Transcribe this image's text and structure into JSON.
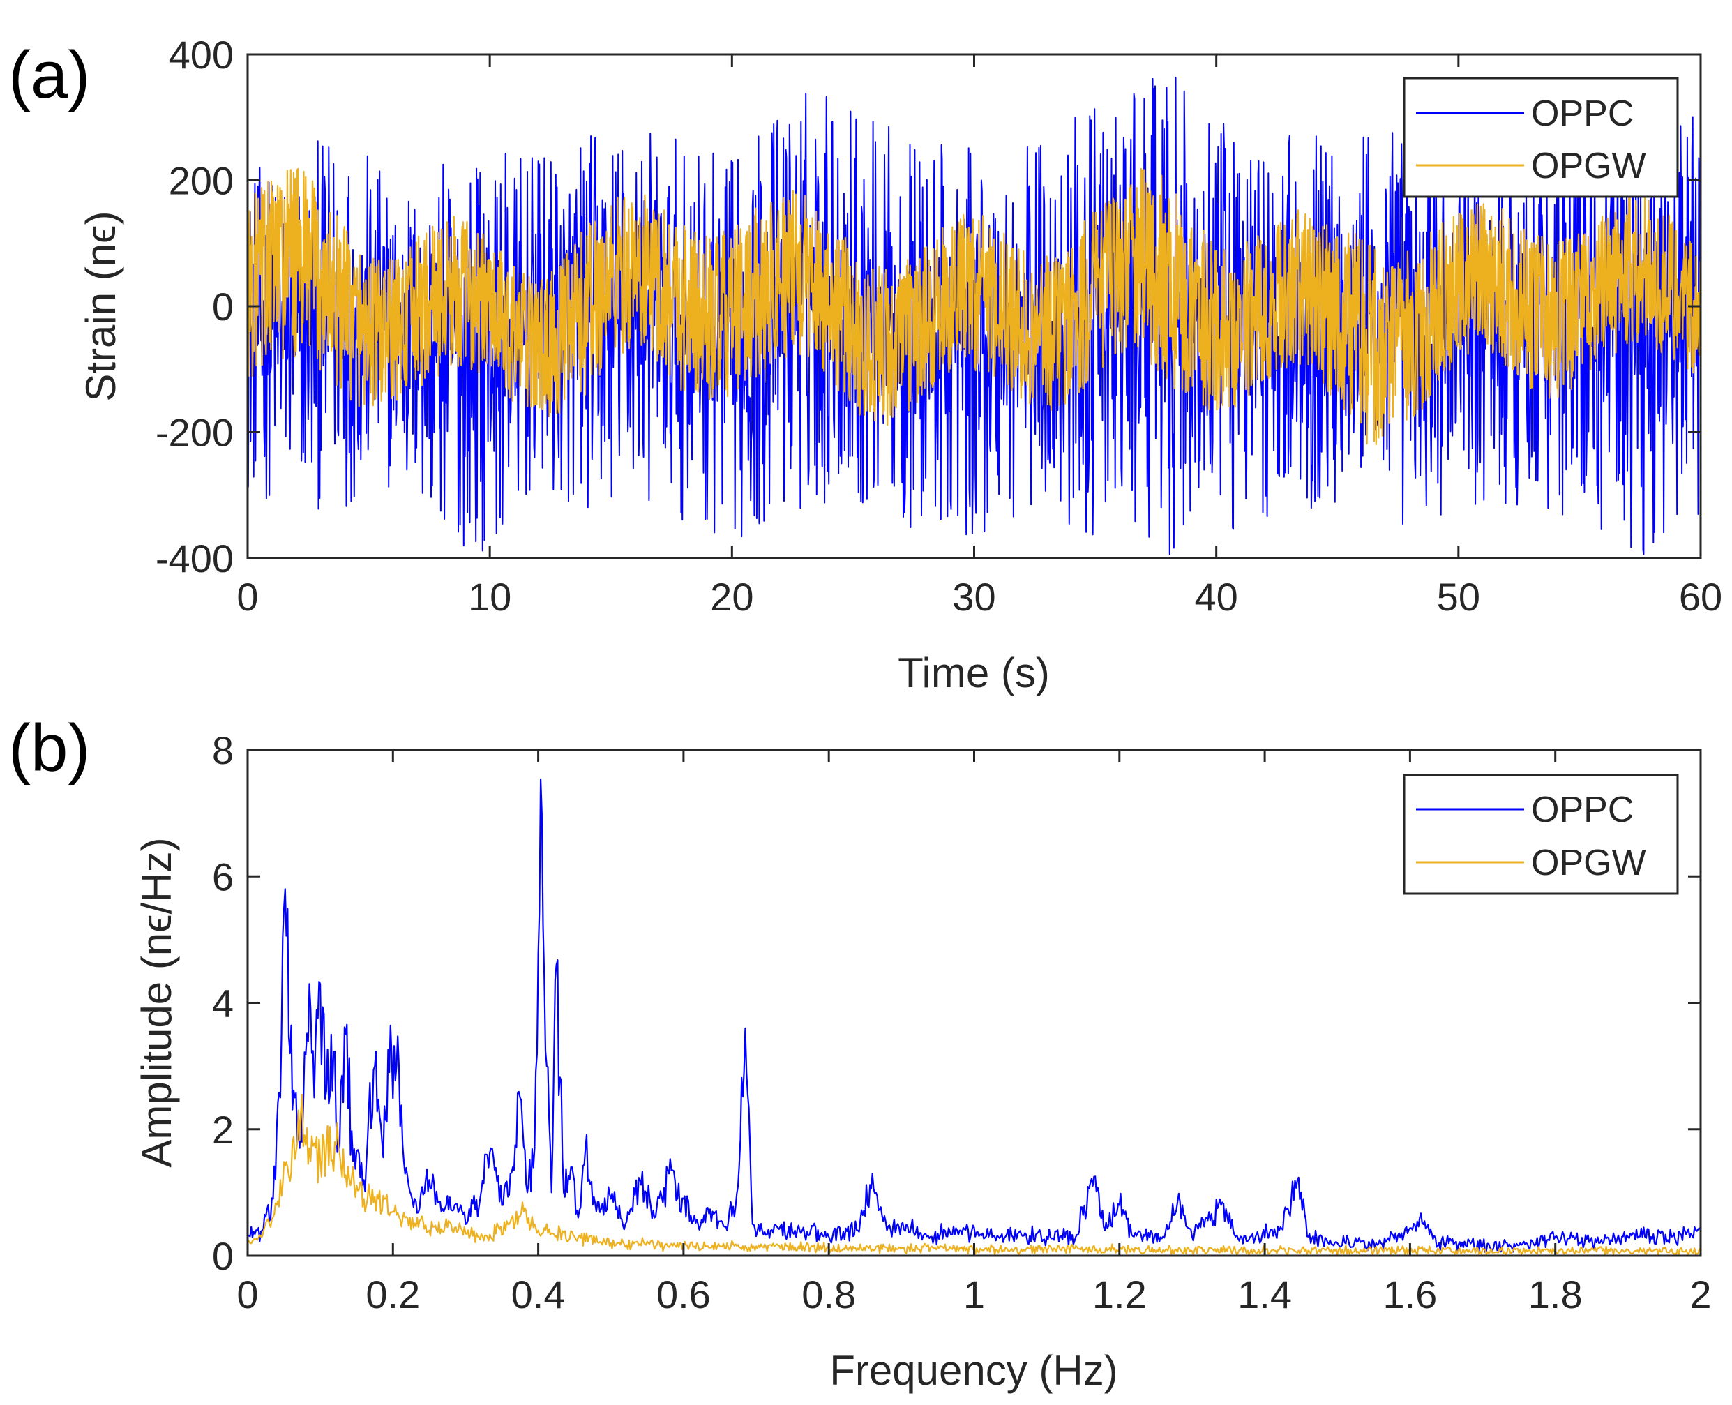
{
  "chart_data": [
    {
      "type": "line",
      "panel_label": "(a)",
      "xlabel": "Time (s)",
      "ylabel": "Strain (nϵ)",
      "xlim": [
        0,
        60
      ],
      "ylim": [
        -400,
        400
      ],
      "xticks": [
        0,
        10,
        20,
        30,
        40,
        50,
        60
      ],
      "yticks": [
        -400,
        -200,
        0,
        200,
        400
      ],
      "xtick_labels": [
        "0",
        "10",
        "20",
        "30",
        "40",
        "50",
        "60"
      ],
      "ytick_labels": [
        "-400",
        "-200",
        "0",
        "200",
        "400"
      ],
      "legend": {
        "position": "top-right",
        "entries": [
          "OPPC",
          "OPGW"
        ]
      },
      "grid": false,
      "series": [
        {
          "name": "OPPC",
          "color": "#0000ff",
          "description_stats": {
            "x_range": [
              0,
              60
            ],
            "approx_min": -400,
            "approx_max": 385
          },
          "envelope": {
            "x": [
              0,
              2,
              4,
              6,
              8,
              10,
              12,
              14,
              16,
              18,
              20,
              22,
              24,
              26,
              28,
              30,
              32,
              34,
              36,
              38,
              40,
              42,
              44,
              46,
              48,
              50,
              52,
              54,
              56,
              58,
              60
            ],
            "upper": [
              220,
              240,
              290,
              200,
              230,
              250,
              240,
              280,
              300,
              260,
              240,
              330,
              380,
              300,
              270,
              250,
              270,
              300,
              330,
              380,
              290,
              290,
              280,
              300,
              290,
              270,
              310,
              290,
              300,
              340,
              310
            ],
            "lower": [
              -300,
              -330,
              -320,
              -290,
              -380,
              -390,
              -310,
              -330,
              -320,
              -340,
              -380,
              -350,
              -310,
              -330,
              -380,
              -370,
              -340,
              -360,
              -380,
              -395,
              -390,
              -340,
              -320,
              -330,
              -360,
              -340,
              -320,
              -330,
              -370,
              -400,
              -330
            ]
          }
        },
        {
          "name": "OPGW",
          "color": "#edb120",
          "envelope": {
            "x": [
              0,
              2,
              4,
              6,
              8,
              10,
              12,
              14,
              16,
              18,
              20,
              22,
              24,
              26,
              28,
              30,
              32,
              34,
              36,
              38,
              40,
              42,
              44,
              46,
              48,
              50,
              52,
              54,
              56,
              58,
              60
            ],
            "upper": [
              260,
              265,
              190,
              140,
              150,
              130,
              130,
              180,
              150,
              200,
              160,
              140,
              150,
              190,
              140,
              150,
              130,
              150,
              160,
              200,
              150,
              140,
              160,
              220,
              170,
              150,
              150,
              150,
              140,
              160,
              150
            ],
            "lower": [
              -60,
              -90,
              -110,
              -120,
              -130,
              -120,
              -110,
              -130,
              -130,
              -110,
              -140,
              -160,
              -130,
              -110,
              -120,
              -130,
              -140,
              -140,
              -150,
              -160,
              -150,
              -130,
              -130,
              -150,
              -140,
              -120,
              -130,
              -140,
              -130,
              -110,
              -100
            ]
          }
        }
      ]
    },
    {
      "type": "line",
      "panel_label": "(b)",
      "xlabel": "Frequency (Hz)",
      "ylabel": "Amplitude (nϵ/Hz)",
      "xlim": [
        0,
        2
      ],
      "ylim": [
        0,
        8
      ],
      "xticks": [
        0,
        0.2,
        0.4,
        0.6,
        0.8,
        1,
        1.2,
        1.4,
        1.6,
        1.8,
        2
      ],
      "yticks": [
        0,
        2,
        4,
        6,
        8
      ],
      "xtick_labels": [
        "0",
        "0.2",
        "0.4",
        "0.6",
        "0.8",
        "1",
        "1.2",
        "1.4",
        "1.6",
        "1.8",
        "2"
      ],
      "ytick_labels": [
        "0",
        "2",
        "4",
        "6",
        "8"
      ],
      "legend": {
        "position": "top-right",
        "entries": [
          "OPPC",
          "OPGW"
        ]
      },
      "grid": false,
      "series": [
        {
          "name": "OPPC",
          "color": "#0000ff",
          "x": [
            0,
            0.02,
            0.035,
            0.045,
            0.052,
            0.058,
            0.065,
            0.075,
            0.085,
            0.092,
            0.1,
            0.108,
            0.115,
            0.125,
            0.135,
            0.145,
            0.16,
            0.175,
            0.185,
            0.195,
            0.205,
            0.215,
            0.23,
            0.25,
            0.27,
            0.285,
            0.3,
            0.32,
            0.335,
            0.35,
            0.365,
            0.375,
            0.385,
            0.395,
            0.405,
            0.412,
            0.418,
            0.425,
            0.435,
            0.445,
            0.455,
            0.465,
            0.48,
            0.5,
            0.52,
            0.54,
            0.56,
            0.58,
            0.6,
            0.62,
            0.64,
            0.66,
            0.675,
            0.685,
            0.695,
            0.72,
            0.76,
            0.8,
            0.84,
            0.86,
            0.88,
            0.9,
            0.94,
            0.98,
            1.02,
            1.06,
            1.1,
            1.14,
            1.165,
            1.18,
            1.2,
            1.22,
            1.26,
            1.28,
            1.3,
            1.34,
            1.36,
            1.38,
            1.42,
            1.445,
            1.46,
            1.5,
            1.56,
            1.62,
            1.64,
            1.7,
            1.76,
            1.8,
            1.86,
            1.9,
            1.96,
            2.0
          ],
          "y": [
            0.3,
            0.4,
            0.9,
            2.5,
            5.8,
            3.2,
            2.5,
            1.8,
            4.3,
            2.5,
            4.3,
            2.6,
            3.5,
            1.8,
            3.5,
            1.5,
            1.2,
            3.0,
            1.8,
            2.9,
            3.0,
            1.5,
            0.9,
            1.2,
            0.7,
            0.8,
            0.5,
            0.9,
            1.7,
            0.8,
            1.4,
            2.5,
            1.0,
            1.7,
            7.0,
            3.0,
            1.0,
            4.6,
            1.0,
            1.4,
            0.6,
            1.7,
            0.7,
            0.9,
            0.5,
            1.2,
            0.6,
            1.3,
            0.9,
            0.5,
            0.7,
            0.4,
            1.1,
            3.6,
            0.5,
            0.4,
            0.4,
            0.3,
            0.4,
            1.3,
            0.4,
            0.5,
            0.3,
            0.4,
            0.3,
            0.35,
            0.3,
            0.3,
            1.25,
            0.4,
            0.8,
            0.3,
            0.3,
            0.85,
            0.3,
            0.8,
            0.3,
            0.3,
            0.4,
            1.2,
            0.3,
            0.2,
            0.2,
            0.55,
            0.2,
            0.15,
            0.2,
            0.3,
            0.2,
            0.3,
            0.3,
            0.4
          ]
        },
        {
          "name": "OPGW",
          "color": "#edb120",
          "x": [
            0,
            0.02,
            0.04,
            0.055,
            0.07,
            0.085,
            0.1,
            0.12,
            0.14,
            0.16,
            0.18,
            0.2,
            0.22,
            0.25,
            0.28,
            0.3,
            0.33,
            0.36,
            0.38,
            0.4,
            0.42,
            0.45,
            0.5,
            0.6,
            0.7,
            0.8,
            0.9,
            1.0,
            1.2,
            1.4,
            1.6,
            1.8,
            2.0
          ],
          "y": [
            0.2,
            0.3,
            0.8,
            1.4,
            2.3,
            1.7,
            1.5,
            1.8,
            1.2,
            0.9,
            0.9,
            0.7,
            0.6,
            0.4,
            0.5,
            0.35,
            0.3,
            0.5,
            0.7,
            0.4,
            0.35,
            0.3,
            0.2,
            0.15,
            0.15,
            0.12,
            0.12,
            0.1,
            0.1,
            0.08,
            0.08,
            0.07,
            0.07
          ]
        }
      ]
    }
  ]
}
